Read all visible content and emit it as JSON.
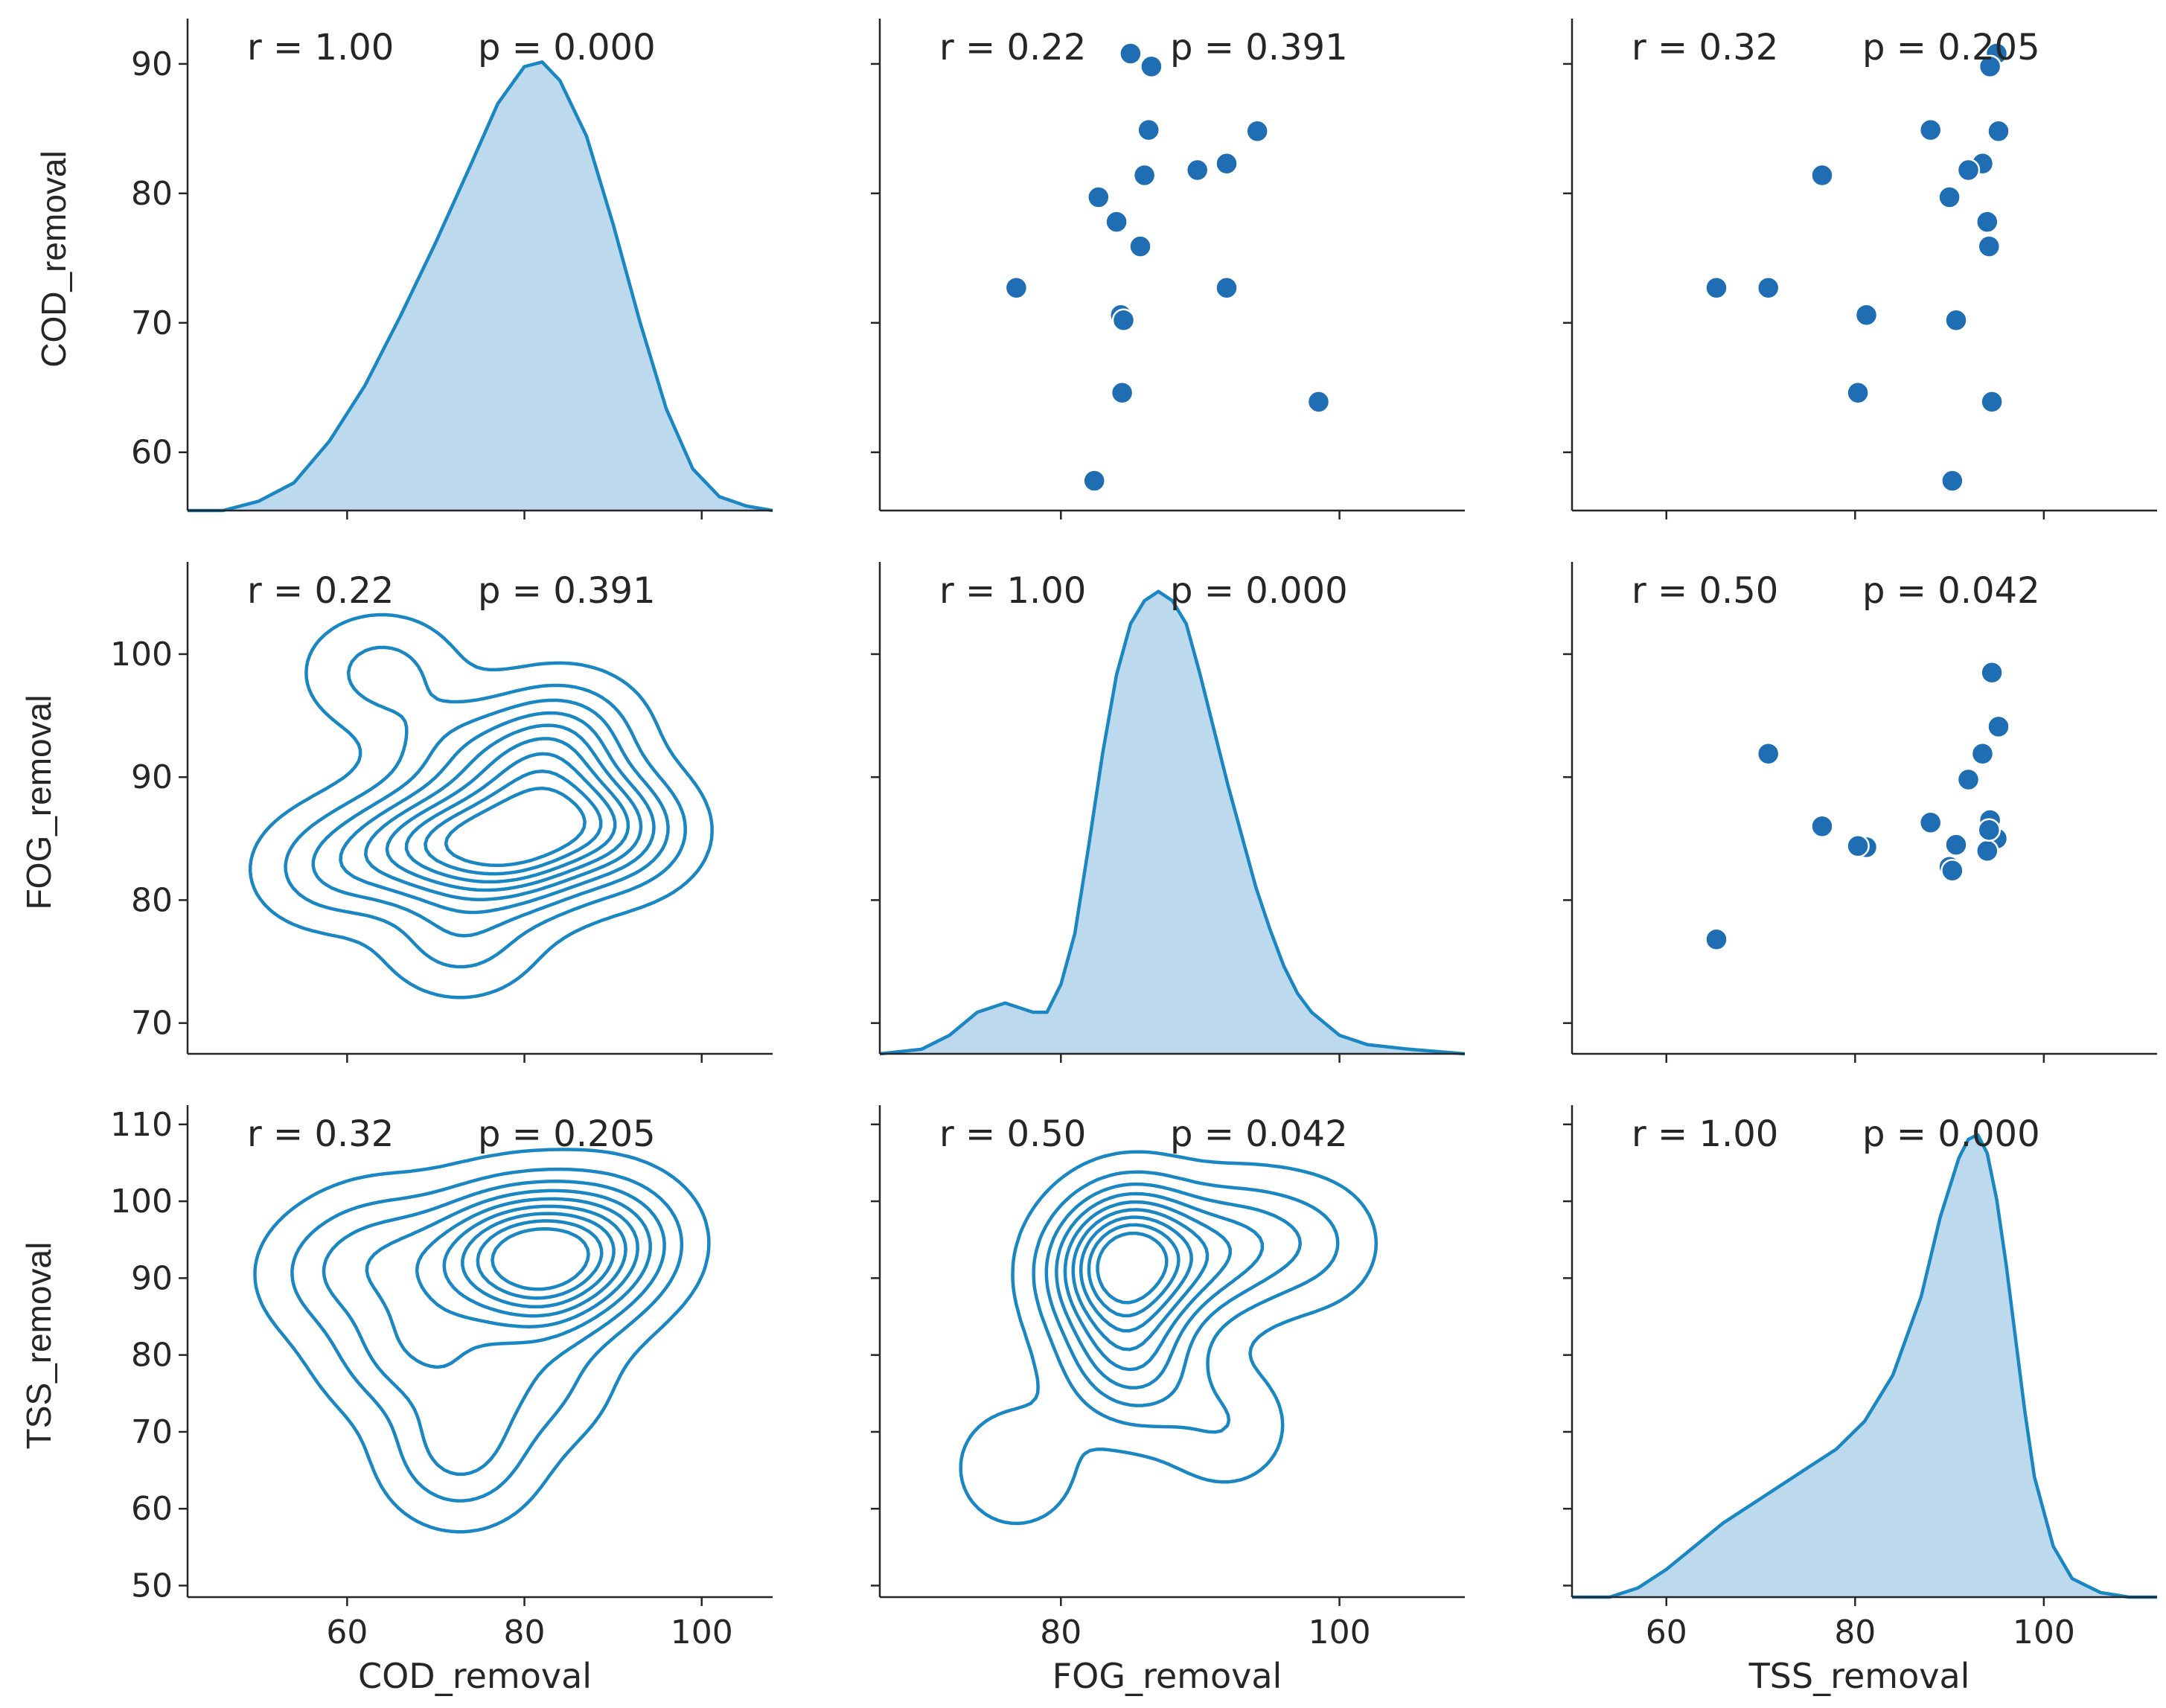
{
  "chart_data": {
    "type": "pairplot",
    "variables": [
      "COD_removal",
      "FOG_removal",
      "TSS_removal"
    ],
    "axis_labels": [
      "COD_removal",
      "FOG_removal",
      "TSS_removal"
    ],
    "colors": {
      "main": "#1f77b4",
      "kde": "#1a86c2",
      "fill": "#bcd9ee",
      "point": "#1f6eb4",
      "axis": "#262626"
    },
    "ranges": {
      "COD_removal": [
        42,
        108
      ],
      "FOG_removal": [
        67,
        109
      ],
      "TSS_removal": [
        50,
        112
      ]
    },
    "diag_y_ranges": {
      "COD_removal": [
        55.5,
        93.5
      ],
      "FOG_removal": [
        67.5,
        107.5
      ],
      "TSS_removal": [
        48.5,
        112.5
      ]
    },
    "ticks": {
      "COD_removal": {
        "values": [
          60,
          70,
          80,
          90
        ],
        "labels": [
          "60",
          "70",
          "80",
          "90"
        ]
      },
      "FOG_removal": {
        "values": [
          70,
          80,
          90,
          100
        ],
        "labels": [
          "70",
          "80",
          "90",
          "100"
        ]
      },
      "TSS_removal": {
        "values": [
          50,
          60,
          70,
          80,
          90,
          100,
          110
        ],
        "labels": [
          "50",
          "60",
          "70",
          "80",
          "90",
          "100",
          "110"
        ]
      }
    },
    "xticks": {
      "COD_removal": {
        "values": [
          60,
          80,
          100
        ],
        "labels": [
          "60",
          "80",
          "100"
        ]
      },
      "FOG_removal": {
        "values": [
          80,
          100
        ],
        "labels": [
          "80",
          "100"
        ]
      },
      "TSS_removal": {
        "values": [
          60,
          80,
          100
        ],
        "labels": [
          "60",
          "80",
          "100"
        ]
      }
    },
    "correlations": [
      [
        {
          "r": "r = 1.00",
          "p": "p = 0.000"
        },
        {
          "r": "r = 0.22",
          "p": "p = 0.391"
        },
        {
          "r": "r = 0.32",
          "p": "p = 0.205"
        }
      ],
      [
        {
          "r": "r = 0.22",
          "p": "p = 0.391"
        },
        {
          "r": "r = 1.00",
          "p": "p = 0.000"
        },
        {
          "r": "r = 0.50",
          "p": "p = 0.042"
        }
      ],
      [
        {
          "r": "r = 0.32",
          "p": "p = 0.205"
        },
        {
          "r": "r = 0.50",
          "p": "p = 0.042"
        },
        {
          "r": "r = 1.00",
          "p": "p = 0.000"
        }
      ]
    ],
    "samples": [
      {
        "COD_removal": 90.8,
        "FOG_removal": 85.0,
        "TSS_removal": 95.0
      },
      {
        "COD_removal": 89.8,
        "FOG_removal": 86.5,
        "TSS_removal": 94.3
      },
      {
        "COD_removal": 84.8,
        "FOG_removal": 94.1,
        "TSS_removal": 95.2
      },
      {
        "COD_removal": 84.9,
        "FOG_removal": 86.3,
        "TSS_removal": 88.0
      },
      {
        "COD_removal": 82.3,
        "FOG_removal": 91.9,
        "TSS_removal": 93.5
      },
      {
        "COD_removal": 81.8,
        "FOG_removal": 89.8,
        "TSS_removal": 92.0
      },
      {
        "COD_removal": 81.4,
        "FOG_removal": 86.0,
        "TSS_removal": 76.5
      },
      {
        "COD_removal": 79.7,
        "FOG_removal": 82.7,
        "TSS_removal": 90.0
      },
      {
        "COD_removal": 77.8,
        "FOG_removal": 84.0,
        "TSS_removal": 94.0
      },
      {
        "COD_removal": 75.9,
        "FOG_removal": 85.7,
        "TSS_removal": 94.2
      },
      {
        "COD_removal": 72.7,
        "FOG_removal": 76.8,
        "TSS_removal": 65.3
      },
      {
        "COD_removal": 72.7,
        "FOG_removal": 91.9,
        "TSS_removal": 70.8
      },
      {
        "COD_removal": 70.6,
        "FOG_removal": 84.3,
        "TSS_removal": 81.2
      },
      {
        "COD_removal": 70.2,
        "FOG_removal": 84.5,
        "TSS_removal": 90.7
      },
      {
        "COD_removal": 64.6,
        "FOG_removal": 84.4,
        "TSS_removal": 80.3
      },
      {
        "COD_removal": 63.9,
        "FOG_removal": 98.5,
        "TSS_removal": 94.5
      },
      {
        "COD_removal": 57.8,
        "FOG_removal": 82.4,
        "TSS_removal": 90.3
      }
    ],
    "diag_kde": {
      "COD_removal": [
        [
          42,
          0.0
        ],
        [
          46,
          0.0
        ],
        [
          50,
          0.02
        ],
        [
          54,
          0.06
        ],
        [
          58,
          0.15
        ],
        [
          62,
          0.27
        ],
        [
          66,
          0.42
        ],
        [
          70,
          0.58
        ],
        [
          74,
          0.75
        ],
        [
          77,
          0.88
        ],
        [
          80,
          0.96
        ],
        [
          82,
          0.97
        ],
        [
          84,
          0.93
        ],
        [
          87,
          0.81
        ],
        [
          90,
          0.62
        ],
        [
          93,
          0.41
        ],
        [
          96,
          0.22
        ],
        [
          99,
          0.09
        ],
        [
          102,
          0.03
        ],
        [
          105,
          0.01
        ],
        [
          108,
          0.0
        ]
      ],
      "FOG_removal": [
        [
          67,
          0.0
        ],
        [
          70,
          0.01
        ],
        [
          72,
          0.04
        ],
        [
          74,
          0.09
        ],
        [
          76,
          0.11
        ],
        [
          78,
          0.09
        ],
        [
          79,
          0.09
        ],
        [
          80,
          0.15
        ],
        [
          81,
          0.26
        ],
        [
          82,
          0.45
        ],
        [
          83,
          0.65
        ],
        [
          84,
          0.82
        ],
        [
          85,
          0.93
        ],
        [
          86,
          0.98
        ],
        [
          87,
          1.0
        ],
        [
          88,
          0.98
        ],
        [
          89,
          0.93
        ],
        [
          90,
          0.82
        ],
        [
          91,
          0.7
        ],
        [
          92,
          0.58
        ],
        [
          93,
          0.47
        ],
        [
          94,
          0.36
        ],
        [
          95,
          0.27
        ],
        [
          96,
          0.19
        ],
        [
          97,
          0.13
        ],
        [
          98,
          0.09
        ],
        [
          100,
          0.04
        ],
        [
          102,
          0.02
        ],
        [
          105,
          0.01
        ],
        [
          109,
          0.0
        ]
      ],
      "TSS_removal": [
        [
          50,
          0.0
        ],
        [
          54,
          0.0
        ],
        [
          57,
          0.02
        ],
        [
          60,
          0.06
        ],
        [
          63,
          0.11
        ],
        [
          66,
          0.16
        ],
        [
          69,
          0.2
        ],
        [
          72,
          0.24
        ],
        [
          75,
          0.28
        ],
        [
          78,
          0.32
        ],
        [
          81,
          0.38
        ],
        [
          84,
          0.48
        ],
        [
          87,
          0.65
        ],
        [
          89,
          0.82
        ],
        [
          91,
          0.95
        ],
        [
          92,
          0.99
        ],
        [
          93,
          1.0
        ],
        [
          94,
          0.96
        ],
        [
          95,
          0.86
        ],
        [
          96,
          0.72
        ],
        [
          97,
          0.56
        ],
        [
          98,
          0.4
        ],
        [
          99,
          0.26
        ],
        [
          101,
          0.11
        ],
        [
          103,
          0.04
        ],
        [
          106,
          0.01
        ],
        [
          109,
          0.0
        ],
        [
          112,
          0.0
        ]
      ]
    }
  }
}
